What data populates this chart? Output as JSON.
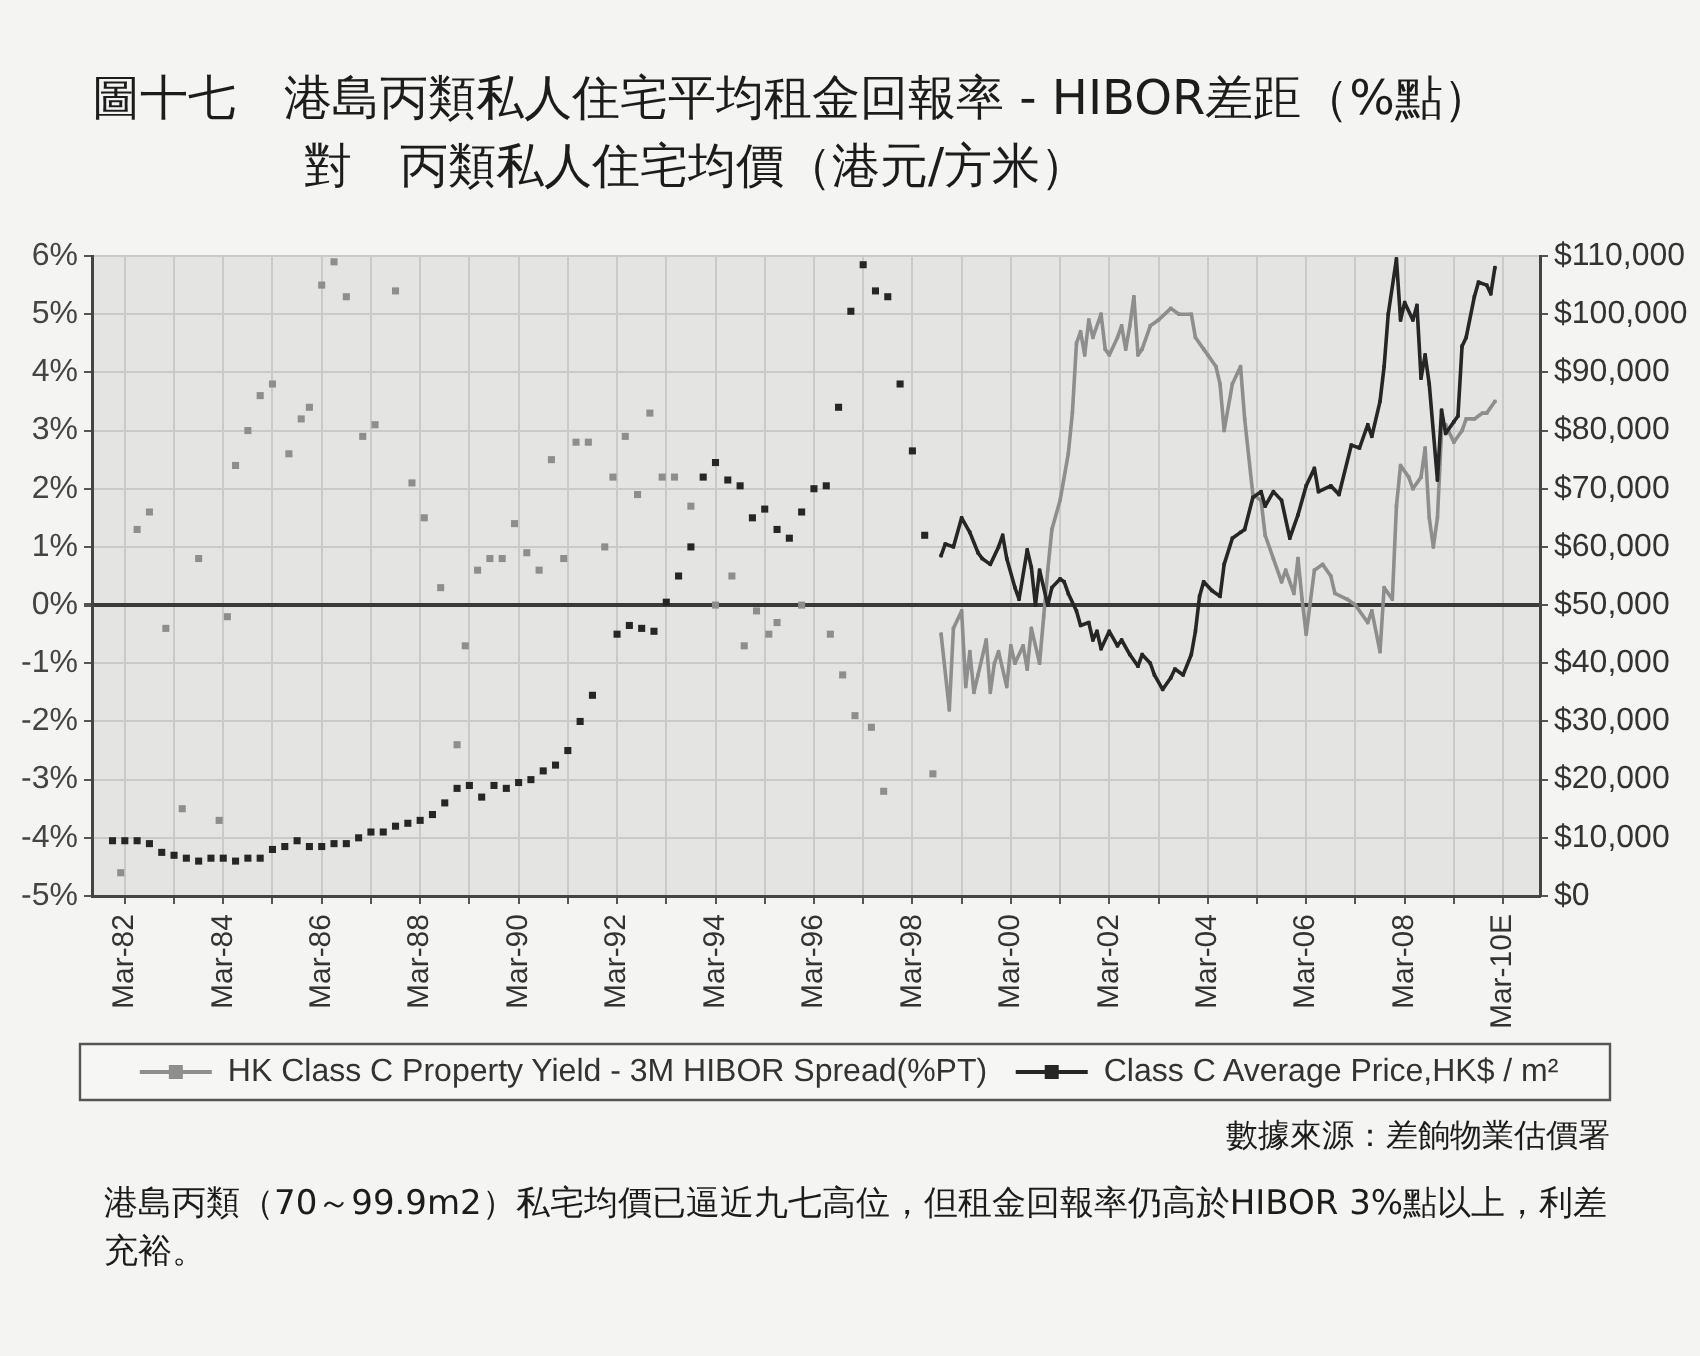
{
  "chart_data": {
    "type": "line",
    "title": "圖十七　港島丙類私人住宅平均租金回報率 - HIBOR差距（%點）",
    "subtitle": "對　丙類私人住宅均價（港元/方米）",
    "annotations": [
      "數據來源：差餉物業估價署",
      "港島丙類（70～99.9m2）私宅均價已逼近九七高位，但租金回報率仍高於HIBOR 3%點以上，利差充裕。"
    ],
    "xlim": [
      "1981-07",
      "2010-12"
    ],
    "xticks": [
      {
        "value": "1982-03",
        "label": "Mar-82"
      },
      {
        "value": "1983-03",
        "label": null
      },
      {
        "value": "1984-03",
        "label": "Mar-84"
      },
      {
        "value": "1985-03",
        "label": null
      },
      {
        "value": "1986-03",
        "label": "Mar-86"
      },
      {
        "value": "1987-03",
        "label": null
      },
      {
        "value": "1988-03",
        "label": "Mar-88"
      },
      {
        "value": "1989-03",
        "label": null
      },
      {
        "value": "1990-03",
        "label": "Mar-90"
      },
      {
        "value": "1991-03",
        "label": null
      },
      {
        "value": "1992-03",
        "label": "Mar-92"
      },
      {
        "value": "1993-03",
        "label": null
      },
      {
        "value": "1994-03",
        "label": "Mar-94"
      },
      {
        "value": "1995-03",
        "label": null
      },
      {
        "value": "1996-03",
        "label": "Mar-96"
      },
      {
        "value": "1997-03",
        "label": null
      },
      {
        "value": "1998-03",
        "label": "Mar-98"
      },
      {
        "value": "1999-03",
        "label": null
      },
      {
        "value": "2000-03",
        "label": "Mar-00"
      },
      {
        "value": "2001-03",
        "label": null
      },
      {
        "value": "2002-03",
        "label": "Mar-02"
      },
      {
        "value": "2003-03",
        "label": null
      },
      {
        "value": "2004-03",
        "label": "Mar-04"
      },
      {
        "value": "2005-03",
        "label": null
      },
      {
        "value": "2006-03",
        "label": "Mar-06"
      },
      {
        "value": "2007-03",
        "label": null
      },
      {
        "value": "2008-03",
        "label": "Mar-08"
      },
      {
        "value": "2009-03",
        "label": null
      },
      {
        "value": "2010-03",
        "label": "Mar-10E"
      }
    ],
    "ylim": [
      -5,
      6
    ],
    "yticks": [
      {
        "value": -5,
        "label": "-5%"
      },
      {
        "value": -4,
        "label": "-4%"
      },
      {
        "value": -3,
        "label": "-3%"
      },
      {
        "value": -2,
        "label": "-2%"
      },
      {
        "value": -1,
        "label": "-1%"
      },
      {
        "value": 0,
        "label": "0%"
      },
      {
        "value": 1,
        "label": "1%"
      },
      {
        "value": 2,
        "label": "2%"
      },
      {
        "value": 3,
        "label": "3%"
      },
      {
        "value": 4,
        "label": "4%"
      },
      {
        "value": 5,
        "label": "5%"
      },
      {
        "value": 6,
        "label": "6%"
      }
    ],
    "y2lim": [
      0,
      110000
    ],
    "y2ticks": [
      {
        "value": 0,
        "label": "$0"
      },
      {
        "value": 10000,
        "label": "$10,000"
      },
      {
        "value": 20000,
        "label": "$20,000"
      },
      {
        "value": 30000,
        "label": "$30,000"
      },
      {
        "value": 40000,
        "label": "$40,000"
      },
      {
        "value": 50000,
        "label": "$50,000"
      },
      {
        "value": 60000,
        "label": "$60,000"
      },
      {
        "value": 70000,
        "label": "$70,000"
      },
      {
        "value": 80000,
        "label": "$80,000"
      },
      {
        "value": 90000,
        "label": "$90,000"
      },
      {
        "value": 100000,
        "label": "$100,000"
      },
      {
        "value": 110000,
        "label": "$110,000"
      }
    ],
    "grid": true,
    "legend": "bottom",
    "marker": "square",
    "series": [
      {
        "name": "HK Class C Property Yield - 3M HIBOR Spread(%PT)",
        "color": "#8e8e8e",
        "x": [
          "1998-10",
          "1998-12",
          "1999-01",
          "1999-03",
          "1999-04",
          "1999-05",
          "1999-06",
          "1999-07",
          "1999-09",
          "1999-10",
          "1999-11",
          "1999-12",
          "2000-02",
          "2000-03",
          "2000-04",
          "2000-06",
          "2000-07",
          "2000-08",
          "2000-10",
          "2000-11",
          "2000-12",
          "2001-01",
          "2001-03",
          "2001-05",
          "2001-06",
          "2001-07",
          "2001-08",
          "2001-09",
          "2001-10",
          "2001-11",
          "2002-01",
          "2002-02",
          "2002-03",
          "2002-05",
          "2002-06",
          "2002-07",
          "2002-08",
          "2002-09",
          "2002-10",
          "2002-11",
          "2003-01",
          "2003-03",
          "2003-06",
          "2003-08",
          "2003-11",
          "2003-12",
          "2004-02",
          "2004-03",
          "2004-05",
          "2004-06",
          "2004-07",
          "2004-09",
          "2004-11",
          "2004-12",
          "2005-02",
          "2005-04",
          "2005-05",
          "2005-07",
          "2005-09",
          "2005-10",
          "2005-12",
          "2006-01",
          "2006-02",
          "2006-03",
          "2006-05",
          "2006-07",
          "2006-09",
          "2006-10",
          "2007-01",
          "2007-03",
          "2007-06",
          "2007-07",
          "2007-09",
          "2007-10",
          "2007-12",
          "2008-01",
          "2008-02",
          "2008-04",
          "2008-05",
          "2008-07",
          "2008-08",
          "2008-09",
          "2008-10",
          "2008-11",
          "2008-12",
          "2009-01",
          "2009-03",
          "2009-05",
          "2009-06",
          "2009-08",
          "2009-10",
          "2009-11",
          "2010-01"
        ],
        "values": [
          -0.5,
          -1.8,
          -0.4,
          -0.1,
          -1.4,
          -0.8,
          -1.5,
          -1.2,
          -0.6,
          -1.5,
          -1.0,
          -0.8,
          -1.4,
          -0.7,
          -1.0,
          -0.7,
          -1.1,
          -0.4,
          -1.0,
          -0.2,
          0.6,
          1.3,
          1.8,
          2.6,
          3.3,
          4.5,
          4.7,
          4.3,
          4.9,
          4.6,
          5.0,
          4.4,
          4.3,
          4.6,
          4.8,
          4.4,
          4.8,
          5.3,
          4.3,
          4.4,
          4.8,
          4.9,
          5.1,
          5.0,
          5.0,
          4.6,
          4.4,
          4.3,
          4.1,
          3.8,
          3.0,
          3.8,
          4.1,
          3.2,
          1.9,
          1.8,
          1.2,
          0.8,
          0.4,
          0.6,
          0.2,
          0.8,
          0.1,
          -0.5,
          0.6,
          0.7,
          0.5,
          0.2,
          0.1,
          0.0,
          -0.3,
          -0.1,
          -0.8,
          0.3,
          0.1,
          1.7,
          2.4,
          2.2,
          2.0,
          2.2,
          2.7,
          1.5,
          1.0,
          1.5,
          3.0,
          3.1,
          2.8,
          3.0,
          3.2,
          3.2,
          3.3,
          3.3,
          3.5
        ]
      },
      {
        "name": "Class C Average Price,HK$ / m²",
        "color": "#262626",
        "axis": "y2",
        "x": [
          "1998-10",
          "1998-11",
          "1999-01",
          "1999-03",
          "1999-05",
          "1999-07",
          "1999-08",
          "1999-10",
          "1999-12",
          "2000-01",
          "2000-02",
          "2000-04",
          "2000-05",
          "2000-07",
          "2000-08",
          "2000-09",
          "2000-10",
          "2000-12",
          "2001-01",
          "2001-03",
          "2001-04",
          "2001-05",
          "2001-07",
          "2001-08",
          "2001-10",
          "2001-11",
          "2001-12",
          "2002-01",
          "2002-03",
          "2002-05",
          "2002-06",
          "2002-08",
          "2002-10",
          "2002-11",
          "2003-01",
          "2003-02",
          "2003-04",
          "2003-06",
          "2003-07",
          "2003-09",
          "2003-11",
          "2003-12",
          "2004-01",
          "2004-02",
          "2004-04",
          "2004-06",
          "2004-07",
          "2004-09",
          "2004-11",
          "2004-12",
          "2005-02",
          "2005-04",
          "2005-05",
          "2005-07",
          "2005-09",
          "2005-11",
          "2006-01",
          "2006-03",
          "2006-05",
          "2006-06",
          "2006-09",
          "2006-11",
          "2007-02",
          "2007-04",
          "2007-06",
          "2007-07",
          "2007-09",
          "2007-10",
          "2007-11",
          "2008-01",
          "2008-02",
          "2008-03",
          "2008-05",
          "2008-06",
          "2008-07",
          "2008-08",
          "2008-09",
          "2008-11",
          "2008-12",
          "2009-01",
          "2009-03",
          "2009-04",
          "2009-05",
          "2009-06",
          "2009-08",
          "2009-09",
          "2009-11",
          "2009-12",
          "2010-01"
        ],
        "values": [
          58500,
          60500,
          60000,
          65000,
          62500,
          59000,
          58000,
          57000,
          60000,
          62000,
          58000,
          53000,
          51000,
          59500,
          56500,
          50000,
          56000,
          50000,
          53000,
          54500,
          54000,
          52000,
          49000,
          46500,
          47000,
          44000,
          45500,
          42500,
          45500,
          43000,
          44000,
          41500,
          39500,
          41500,
          40000,
          38000,
          35500,
          37500,
          39000,
          38000,
          41500,
          45500,
          51500,
          54000,
          52500,
          51500,
          57000,
          61500,
          62500,
          63000,
          68500,
          69500,
          67000,
          69500,
          68000,
          61500,
          65500,
          70500,
          73500,
          69500,
          70500,
          69000,
          77500,
          77000,
          81000,
          79000,
          85000,
          91000,
          100000,
          109500,
          99000,
          102000,
          99000,
          101500,
          89000,
          93000,
          88000,
          71500,
          83500,
          79500,
          81500,
          82500,
          94500,
          96000,
          103000,
          105500,
          105000,
          103500,
          108000
        ]
      },
      {
        "type": "scatter",
        "color": "#8e8e8e",
        "x": [
          "1982-02",
          "1982-06",
          "1982-09",
          "1983-01",
          "1983-05",
          "1983-09",
          "1984-02",
          "1984-04",
          "1984-06",
          "1984-09",
          "1984-12",
          "1985-03",
          "1985-07",
          "1985-10",
          "1985-12",
          "1986-03",
          "1986-06",
          "1986-09",
          "1987-01",
          "1987-04",
          "1987-09",
          "1988-01",
          "1988-04",
          "1988-08",
          "1988-12",
          "1989-02",
          "1989-05",
          "1989-08",
          "1989-11",
          "1990-02",
          "1990-05",
          "1990-08",
          "1990-11",
          "1991-02",
          "1991-05",
          "1991-08",
          "1991-12",
          "1992-02",
          "1992-05",
          "1992-08",
          "1992-11",
          "1993-02",
          "1993-05",
          "1993-09",
          "1994-03",
          "1994-07",
          "1994-10",
          "1995-01",
          "1995-04",
          "1995-06",
          "1995-12",
          "1996-07",
          "1996-10",
          "1997-01",
          "1997-05",
          "1997-08",
          "1998-08"
        ],
        "values": [
          -4.6,
          1.3,
          1.6,
          -0.4,
          -3.5,
          0.8,
          -3.7,
          -0.2,
          2.4,
          3.0,
          3.6,
          3.8,
          2.6,
          3.2,
          3.4,
          5.5,
          5.9,
          5.3,
          2.9,
          3.1,
          5.4,
          2.1,
          1.5,
          0.3,
          -2.4,
          -0.7,
          0.6,
          0.8,
          0.8,
          1.4,
          0.9,
          0.6,
          2.5,
          0.8,
          2.8,
          2.8,
          1.0,
          2.2,
          2.9,
          1.9,
          3.3,
          2.2,
          2.2,
          1.7,
          0.0,
          0.5,
          -0.7,
          -0.1,
          -0.5,
          -0.3,
          0.0,
          -0.5,
          -1.2,
          -1.9,
          -2.1,
          -3.2,
          -2.9
        ]
      },
      {
        "type": "scatter",
        "color": "#262626",
        "axis": "y2",
        "x": [
          "1981-12",
          "1982-03",
          "1982-06",
          "1982-09",
          "1982-12",
          "1983-03",
          "1983-06",
          "1983-09",
          "1983-12",
          "1984-03",
          "1984-06",
          "1984-09",
          "1984-12",
          "1985-03",
          "1985-06",
          "1985-09",
          "1985-12",
          "1986-03",
          "1986-06",
          "1986-09",
          "1986-12",
          "1987-03",
          "1987-06",
          "1987-09",
          "1987-12",
          "1988-03",
          "1988-06",
          "1988-09",
          "1988-12",
          "1989-03",
          "1989-06",
          "1989-09",
          "1989-12",
          "1990-03",
          "1990-06",
          "1990-09",
          "1990-12",
          "1991-03",
          "1991-06",
          "1991-09",
          "1992-03",
          "1992-06",
          "1992-09",
          "1992-12",
          "1993-03",
          "1993-06",
          "1993-09",
          "1993-12",
          "1994-03",
          "1994-06",
          "1994-09",
          "1994-12",
          "1995-03",
          "1995-06",
          "1995-09",
          "1995-12",
          "1996-03",
          "1996-06",
          "1996-09",
          "1996-12",
          "1997-03",
          "1997-06",
          "1997-09",
          "1997-12",
          "1998-03",
          "1998-06"
        ],
        "values": [
          9500,
          9500,
          9500,
          9000,
          7500,
          7000,
          6500,
          6000,
          6500,
          6500,
          6000,
          6500,
          6500,
          8000,
          8500,
          9500,
          8500,
          8500,
          9000,
          9000,
          10000,
          11000,
          11000,
          12000,
          12500,
          13000,
          14000,
          16000,
          18500,
          19000,
          17000,
          19000,
          18500,
          19500,
          20000,
          21500,
          22500,
          25000,
          30000,
          34500,
          45000,
          46500,
          46000,
          45500,
          50500,
          55000,
          60000,
          72000,
          74500,
          71500,
          70500,
          65000,
          66500,
          63000,
          61500,
          66000,
          70000,
          70500,
          84000,
          100500,
          108500,
          104000,
          103000,
          88000,
          76500,
          62000
        ]
      }
    ]
  }
}
